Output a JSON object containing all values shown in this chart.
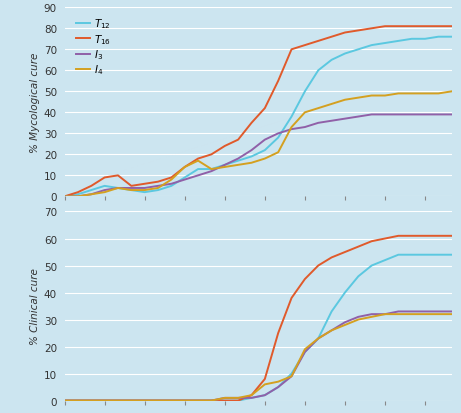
{
  "background_color": "#cce5f0",
  "top_plot": {
    "ylabel": "% Mycological cure",
    "ylim": [
      0,
      90
    ],
    "yticks": [
      0,
      10,
      20,
      30,
      40,
      50,
      60,
      70,
      80,
      90
    ],
    "series": {
      "T12": {
        "color": "#5bc8e0",
        "x": [
          0,
          1,
          2,
          3,
          4,
          5,
          6,
          7,
          8,
          9,
          10,
          11,
          12,
          13,
          14,
          15,
          16,
          17,
          18,
          19,
          20,
          21,
          22,
          23,
          24,
          25,
          26,
          27,
          28,
          29
        ],
        "y": [
          0,
          1,
          3,
          5,
          4,
          3,
          2,
          3,
          5,
          9,
          13,
          13,
          15,
          17,
          19,
          22,
          28,
          38,
          50,
          60,
          65,
          68,
          70,
          72,
          73,
          74,
          75,
          75,
          76,
          76
        ]
      },
      "T16": {
        "color": "#e05a2b",
        "x": [
          0,
          1,
          2,
          3,
          4,
          5,
          6,
          7,
          8,
          9,
          10,
          11,
          12,
          13,
          14,
          15,
          16,
          17,
          18,
          19,
          20,
          21,
          22,
          23,
          24,
          25,
          26,
          27,
          28,
          29
        ],
        "y": [
          0,
          2,
          5,
          9,
          10,
          5,
          6,
          7,
          9,
          14,
          18,
          20,
          24,
          27,
          35,
          42,
          55,
          70,
          72,
          74,
          76,
          78,
          79,
          80,
          81,
          81,
          81,
          81,
          81,
          81
        ]
      },
      "I3": {
        "color": "#9060a8",
        "x": [
          0,
          1,
          2,
          3,
          4,
          5,
          6,
          7,
          8,
          9,
          10,
          11,
          12,
          13,
          14,
          15,
          16,
          17,
          18,
          19,
          20,
          21,
          22,
          23,
          24,
          25,
          26,
          27,
          28,
          29
        ],
        "y": [
          0,
          0,
          1,
          3,
          4,
          4,
          4,
          5,
          6,
          8,
          10,
          12,
          15,
          18,
          22,
          27,
          30,
          32,
          33,
          35,
          36,
          37,
          38,
          39,
          39,
          39,
          39,
          39,
          39,
          39
        ]
      },
      "I4": {
        "color": "#d4a020",
        "x": [
          0,
          1,
          2,
          3,
          4,
          5,
          6,
          7,
          8,
          9,
          10,
          11,
          12,
          13,
          14,
          15,
          16,
          17,
          18,
          19,
          20,
          21,
          22,
          23,
          24,
          25,
          26,
          27,
          28,
          29
        ],
        "y": [
          0,
          0,
          1,
          2,
          4,
          3,
          3,
          4,
          8,
          14,
          17,
          13,
          14,
          15,
          16,
          18,
          21,
          33,
          40,
          42,
          44,
          46,
          47,
          48,
          48,
          49,
          49,
          49,
          49,
          50
        ]
      }
    }
  },
  "bottom_plot": {
    "ylabel": "% Clinical cure",
    "ylim": [
      0,
      70
    ],
    "yticks": [
      0,
      10,
      20,
      30,
      40,
      50,
      60,
      70
    ],
    "series": {
      "T12": {
        "color": "#5bc8e0",
        "x": [
          0,
          1,
          2,
          3,
          4,
          5,
          6,
          7,
          8,
          9,
          10,
          11,
          12,
          13,
          14,
          15,
          16,
          17,
          18,
          19,
          20,
          21,
          22,
          23,
          24,
          25,
          26,
          27,
          28,
          29
        ],
        "y": [
          0,
          0,
          0,
          0,
          0,
          0,
          0,
          0,
          0,
          0,
          0,
          0,
          0,
          0,
          1,
          2,
          5,
          10,
          18,
          23,
          33,
          40,
          46,
          50,
          52,
          54,
          54,
          54,
          54,
          54
        ]
      },
      "T16": {
        "color": "#e05a2b",
        "x": [
          0,
          1,
          2,
          3,
          4,
          5,
          6,
          7,
          8,
          9,
          10,
          11,
          12,
          13,
          14,
          15,
          16,
          17,
          18,
          19,
          20,
          21,
          22,
          23,
          24,
          25,
          26,
          27,
          28,
          29
        ],
        "y": [
          0,
          0,
          0,
          0,
          0,
          0,
          0,
          0,
          0,
          0,
          0,
          0,
          0,
          0,
          2,
          8,
          25,
          38,
          45,
          50,
          53,
          55,
          57,
          59,
          60,
          61,
          61,
          61,
          61,
          61
        ]
      },
      "I3": {
        "color": "#9060a8",
        "x": [
          0,
          1,
          2,
          3,
          4,
          5,
          6,
          7,
          8,
          9,
          10,
          11,
          12,
          13,
          14,
          15,
          16,
          17,
          18,
          19,
          20,
          21,
          22,
          23,
          24,
          25,
          26,
          27,
          28,
          29
        ],
        "y": [
          0,
          0,
          0,
          0,
          0,
          0,
          0,
          0,
          0,
          0,
          0,
          0,
          1,
          1,
          1,
          2,
          5,
          9,
          18,
          23,
          26,
          29,
          31,
          32,
          32,
          33,
          33,
          33,
          33,
          33
        ]
      },
      "I4": {
        "color": "#d4a020",
        "x": [
          0,
          1,
          2,
          3,
          4,
          5,
          6,
          7,
          8,
          9,
          10,
          11,
          12,
          13,
          14,
          15,
          16,
          17,
          18,
          19,
          20,
          21,
          22,
          23,
          24,
          25,
          26,
          27,
          28,
          29
        ],
        "y": [
          0,
          0,
          0,
          0,
          0,
          0,
          0,
          0,
          0,
          0,
          0,
          0,
          1,
          1,
          2,
          6,
          7,
          9,
          19,
          23,
          26,
          28,
          30,
          31,
          32,
          32,
          32,
          32,
          32,
          32
        ]
      }
    }
  },
  "series_order": [
    "T12",
    "T16",
    "I3",
    "I4"
  ],
  "legend_labels": [
    "$T_{12}$",
    "$T_{16}$",
    "$I_3$",
    "$I_4$"
  ],
  "linewidth": 1.4,
  "tick_color": "#888888",
  "grid_color": "#ffffff",
  "label_color": "#333333",
  "label_fontsize": 7.5
}
